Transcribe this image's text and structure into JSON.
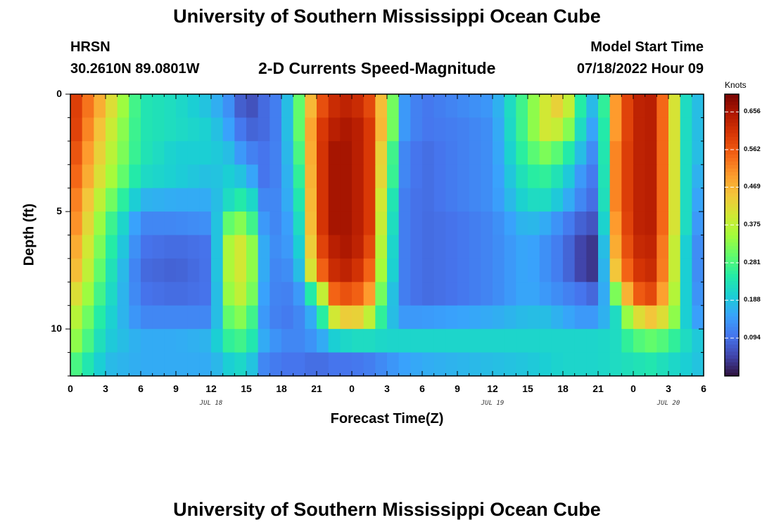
{
  "header": {
    "title": "University of Southern Mississippi Ocean Cube",
    "station": "HRSN",
    "coords": "30.2610N  89.0801W",
    "subtitle": "2-D Currents Speed-Magnitude",
    "model_label": "Model Start Time",
    "model_time": "07/18/2022 Hour 09"
  },
  "footer": {
    "title": "University of Southern Mississippi Ocean Cube"
  },
  "colorbar": {
    "units": "Knots",
    "ticks": [
      0.656,
      0.562,
      0.469,
      0.375,
      0.281,
      0.188,
      0.094
    ],
    "range": [
      0.0,
      0.7
    ],
    "colors": [
      "#30123b",
      "#4145ab",
      "#4675ed",
      "#39a2fc",
      "#1bcfd4",
      "#24eca6",
      "#61fc6c",
      "#a4fc3b",
      "#d1e834",
      "#f3c63a",
      "#fe9b2d",
      "#f36315",
      "#d93806",
      "#b11901",
      "#7a0403"
    ]
  },
  "chart_data": {
    "type": "heatmap",
    "title": "2-D Currents Speed-Magnitude",
    "xlabel": "Forecast Time(Z)",
    "ylabel": "Depth (ft)",
    "units": "Knots",
    "x_range_hours": [
      0,
      54
    ],
    "y_range_ft": [
      0,
      12
    ],
    "x_tick_labels": [
      "0",
      "3",
      "6",
      "9",
      "12",
      "15",
      "18",
      "21",
      "0",
      "3",
      "6",
      "9",
      "12",
      "15",
      "18",
      "21",
      "0",
      "3",
      "6"
    ],
    "y_tick_labels": [
      "0",
      "5",
      "10"
    ],
    "date_labels": [
      {
        "label": "JUL 18",
        "hour": 12
      },
      {
        "label": "JUL 19",
        "hour": 36
      },
      {
        "label": "JUL 20",
        "hour": 51
      }
    ],
    "time_columns_hours": [
      0,
      3,
      6,
      9,
      12,
      13.5,
      15,
      16.5,
      18,
      19.5,
      21,
      22.5,
      24,
      25.5,
      27,
      28.5,
      30,
      33,
      36,
      39,
      40.5,
      42,
      43.5,
      45,
      46.5,
      48,
      49.5,
      51,
      52.5,
      54
    ],
    "depth_rows_ft": [
      0.5,
      1.5,
      2.5,
      3.5,
      4.5,
      5.5,
      6.5,
      7.5,
      8.5,
      9.5,
      10.5,
      11.5
    ],
    "values": [
      [
        0.62,
        0.45,
        0.24,
        0.22,
        0.18,
        0.13,
        0.05,
        0.09,
        0.12,
        0.3,
        0.55,
        0.62,
        0.64,
        0.58,
        0.4,
        0.14,
        0.1,
        0.12,
        0.14,
        0.3,
        0.4,
        0.45,
        0.25,
        0.14,
        0.5,
        0.63,
        0.64,
        0.5,
        0.22,
        0.16
      ],
      [
        0.62,
        0.42,
        0.24,
        0.22,
        0.2,
        0.15,
        0.08,
        0.09,
        0.12,
        0.3,
        0.58,
        0.64,
        0.66,
        0.6,
        0.4,
        0.14,
        0.1,
        0.11,
        0.13,
        0.3,
        0.4,
        0.38,
        0.22,
        0.12,
        0.5,
        0.63,
        0.64,
        0.5,
        0.22,
        0.16
      ],
      [
        0.6,
        0.4,
        0.24,
        0.2,
        0.2,
        0.18,
        0.12,
        0.1,
        0.12,
        0.28,
        0.58,
        0.66,
        0.66,
        0.6,
        0.35,
        0.12,
        0.09,
        0.11,
        0.13,
        0.28,
        0.32,
        0.28,
        0.18,
        0.1,
        0.52,
        0.63,
        0.64,
        0.5,
        0.22,
        0.16
      ],
      [
        0.58,
        0.38,
        0.22,
        0.2,
        0.18,
        0.2,
        0.18,
        0.1,
        0.12,
        0.26,
        0.58,
        0.66,
        0.66,
        0.6,
        0.34,
        0.12,
        0.09,
        0.11,
        0.13,
        0.25,
        0.26,
        0.22,
        0.14,
        0.09,
        0.52,
        0.63,
        0.64,
        0.5,
        0.22,
        0.14
      ],
      [
        0.56,
        0.34,
        0.17,
        0.16,
        0.16,
        0.22,
        0.26,
        0.12,
        0.12,
        0.24,
        0.58,
        0.66,
        0.66,
        0.6,
        0.3,
        0.11,
        0.09,
        0.11,
        0.13,
        0.22,
        0.22,
        0.18,
        0.12,
        0.08,
        0.52,
        0.63,
        0.64,
        0.5,
        0.22,
        0.12
      ],
      [
        0.55,
        0.3,
        0.12,
        0.12,
        0.13,
        0.3,
        0.34,
        0.14,
        0.11,
        0.22,
        0.58,
        0.66,
        0.66,
        0.6,
        0.28,
        0.11,
        0.09,
        0.1,
        0.12,
        0.18,
        0.16,
        0.12,
        0.08,
        0.06,
        0.5,
        0.63,
        0.64,
        0.5,
        0.22,
        0.1
      ],
      [
        0.52,
        0.28,
        0.1,
        0.09,
        0.1,
        0.36,
        0.42,
        0.16,
        0.11,
        0.2,
        0.56,
        0.64,
        0.66,
        0.58,
        0.26,
        0.11,
        0.09,
        0.1,
        0.12,
        0.16,
        0.13,
        0.1,
        0.05,
        0.03,
        0.48,
        0.62,
        0.63,
        0.48,
        0.2,
        0.09
      ],
      [
        0.5,
        0.26,
        0.09,
        0.08,
        0.1,
        0.36,
        0.42,
        0.16,
        0.1,
        0.18,
        0.52,
        0.62,
        0.64,
        0.55,
        0.25,
        0.11,
        0.09,
        0.1,
        0.12,
        0.16,
        0.13,
        0.1,
        0.05,
        0.03,
        0.45,
        0.6,
        0.62,
        0.48,
        0.2,
        0.09
      ],
      [
        0.45,
        0.24,
        0.1,
        0.09,
        0.1,
        0.34,
        0.4,
        0.15,
        0.1,
        0.14,
        0.3,
        0.55,
        0.58,
        0.5,
        0.22,
        0.11,
        0.09,
        0.1,
        0.12,
        0.16,
        0.14,
        0.12,
        0.1,
        0.08,
        0.32,
        0.55,
        0.58,
        0.45,
        0.2,
        0.1
      ],
      [
        0.4,
        0.22,
        0.12,
        0.12,
        0.12,
        0.3,
        0.34,
        0.14,
        0.1,
        0.12,
        0.18,
        0.4,
        0.46,
        0.38,
        0.2,
        0.14,
        0.14,
        0.15,
        0.16,
        0.18,
        0.18,
        0.16,
        0.14,
        0.14,
        0.22,
        0.4,
        0.45,
        0.4,
        0.2,
        0.12
      ],
      [
        0.36,
        0.2,
        0.16,
        0.16,
        0.17,
        0.26,
        0.28,
        0.16,
        0.12,
        0.12,
        0.14,
        0.2,
        0.22,
        0.22,
        0.21,
        0.21,
        0.21,
        0.21,
        0.21,
        0.21,
        0.21,
        0.21,
        0.21,
        0.21,
        0.22,
        0.28,
        0.3,
        0.28,
        0.22,
        0.18
      ],
      [
        0.3,
        0.18,
        0.16,
        0.16,
        0.16,
        0.2,
        0.22,
        0.12,
        0.1,
        0.1,
        0.09,
        0.1,
        0.1,
        0.11,
        0.13,
        0.15,
        0.16,
        0.17,
        0.18,
        0.19,
        0.2,
        0.21,
        0.21,
        0.21,
        0.22,
        0.23,
        0.24,
        0.22,
        0.2,
        0.18
      ]
    ]
  }
}
